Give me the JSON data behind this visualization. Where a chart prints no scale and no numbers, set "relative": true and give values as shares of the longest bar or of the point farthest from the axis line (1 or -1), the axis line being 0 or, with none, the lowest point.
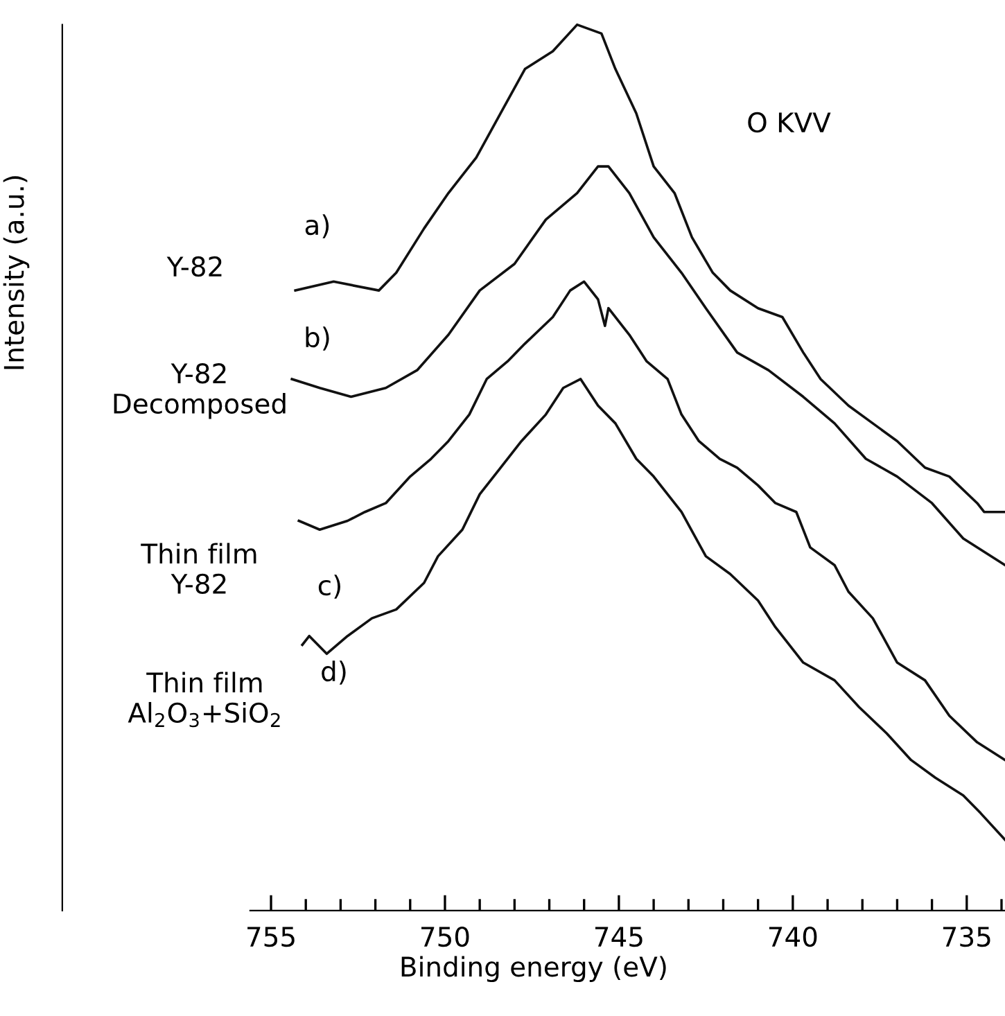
{
  "chart_data": {
    "type": "line",
    "relative": true,
    "xlabel": "Binding energy (eV)",
    "ylabel": "Intensity (a.u.)",
    "xlim": [
      761,
      733.9
    ],
    "xticks": [
      {
        "value": 734,
        "label": null
      },
      735,
      {
        "value": 736,
        "label": null
      },
      {
        "value": 737,
        "label": null
      },
      {
        "value": 738,
        "label": null
      },
      {
        "value": 739,
        "label": null
      },
      740,
      {
        "value": 741,
        "label": null
      },
      {
        "value": 742,
        "label": null
      },
      {
        "value": 743,
        "label": null
      },
      {
        "value": 744,
        "label": null
      },
      745,
      {
        "value": 746,
        "label": null
      },
      {
        "value": 747,
        "label": null
      },
      {
        "value": 748,
        "label": null
      },
      {
        "value": 749,
        "label": null
      },
      750,
      {
        "value": 751,
        "label": null
      },
      {
        "value": 752,
        "label": null
      },
      {
        "value": 753,
        "label": null
      },
      {
        "value": 754,
        "label": null
      },
      755
    ],
    "grid": false,
    "legend": false,
    "marker": "none",
    "line_style": "solid",
    "series": [
      {
        "color": "#111111",
        "x": [
          754.3,
          753.2,
          751.9,
          751.4,
          750.6,
          749.9,
          749.1,
          748.4,
          747.7,
          746.9,
          746.2,
          745.5,
          745.1,
          744.5,
          744.0,
          743.4,
          742.9,
          742.3,
          741.8,
          741.0,
          740.3,
          739.7,
          739.2,
          738.4,
          737.7,
          737.0,
          736.2,
          735.5,
          734.7,
          734.5,
          733.9
        ],
        "values": [
          0.7,
          0.71,
          0.7,
          0.72,
          0.77,
          0.81,
          0.85,
          0.9,
          0.95,
          0.97,
          1.0,
          0.99,
          0.95,
          0.9,
          0.84,
          0.81,
          0.76,
          0.72,
          0.7,
          0.68,
          0.67,
          0.63,
          0.6,
          0.57,
          0.55,
          0.53,
          0.5,
          0.49,
          0.46,
          0.45,
          0.45
        ]
      },
      {
        "color": "#111111",
        "x": [
          754.4,
          753.6,
          752.7,
          751.7,
          750.8,
          749.9,
          749.0,
          748.0,
          747.1,
          746.2,
          745.6,
          745.3,
          744.7,
          744.0,
          743.2,
          742.5,
          741.6,
          740.7,
          739.7,
          738.8,
          737.9,
          737.0,
          736.0,
          735.1,
          733.9
        ],
        "values": [
          0.6,
          0.59,
          0.58,
          0.59,
          0.61,
          0.65,
          0.7,
          0.73,
          0.78,
          0.81,
          0.84,
          0.84,
          0.81,
          0.76,
          0.72,
          0.68,
          0.63,
          0.61,
          0.58,
          0.55,
          0.51,
          0.49,
          0.46,
          0.42,
          0.39
        ]
      },
      {
        "color": "#111111",
        "x": [
          754.2,
          753.6,
          752.8,
          752.3,
          751.7,
          751.0,
          750.4,
          749.9,
          749.3,
          748.8,
          748.2,
          747.7,
          746.9,
          746.4,
          746.0,
          745.6,
          745.4,
          745.3,
          744.7,
          744.2,
          743.6,
          743.2,
          742.7,
          742.1,
          741.6,
          741.0,
          740.5,
          739.9,
          739.5,
          738.8,
          738.4,
          737.7,
          737.0,
          736.2,
          735.5,
          734.7,
          733.9
        ],
        "values": [
          0.44,
          0.43,
          0.44,
          0.45,
          0.46,
          0.49,
          0.51,
          0.53,
          0.56,
          0.6,
          0.62,
          0.64,
          0.67,
          0.7,
          0.71,
          0.69,
          0.66,
          0.68,
          0.65,
          0.62,
          0.6,
          0.56,
          0.53,
          0.51,
          0.5,
          0.48,
          0.46,
          0.45,
          0.41,
          0.39,
          0.36,
          0.33,
          0.28,
          0.26,
          0.22,
          0.19,
          0.17
        ]
      },
      {
        "color": "#111111",
        "x": [
          754.1,
          753.9,
          753.4,
          752.8,
          752.1,
          751.4,
          750.6,
          750.2,
          749.5,
          749.0,
          748.4,
          747.8,
          747.1,
          746.6,
          746.1,
          745.6,
          745.1,
          744.5,
          744.0,
          743.2,
          742.5,
          741.8,
          741.0,
          740.5,
          739.7,
          738.8,
          738.1,
          737.3,
          736.6,
          735.9,
          735.1,
          734.6,
          733.9
        ],
        "values": [
          0.3,
          0.31,
          0.29,
          0.31,
          0.33,
          0.34,
          0.37,
          0.4,
          0.43,
          0.47,
          0.5,
          0.53,
          0.56,
          0.59,
          0.6,
          0.57,
          0.55,
          0.51,
          0.49,
          0.45,
          0.4,
          0.38,
          0.35,
          0.32,
          0.28,
          0.26,
          0.23,
          0.2,
          0.17,
          0.15,
          0.13,
          0.11,
          0.08
        ]
      }
    ],
    "annotations": [
      "O KVV",
      "a)",
      "Y-82",
      "b)",
      "Y-82\nDecomposed",
      "Thin film\nY-82",
      "c)",
      "Thin film\nAl$_{2}$O$_{3}$+SiO$_{2}$",
      "d)"
    ]
  }
}
